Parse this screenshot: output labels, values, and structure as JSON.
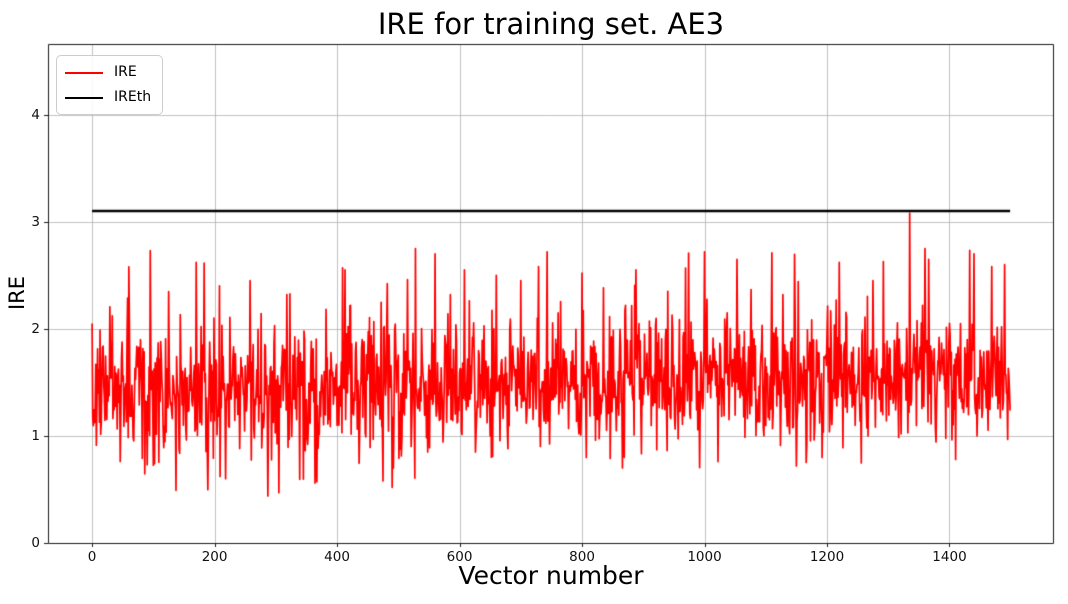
{
  "figure": {
    "background": "#ffffff",
    "text_color": "#000000"
  },
  "chart_data": {
    "type": "line",
    "title": "IRE for training set. AE3",
    "xlabel": "Vector number",
    "ylabel": "IRE",
    "xlim": [
      -72,
      1569
    ],
    "ylim": [
      0,
      4.66
    ],
    "x_ticks": [
      0,
      200,
      400,
      600,
      800,
      1000,
      1200,
      1400
    ],
    "y_ticks": [
      0,
      1,
      2,
      3,
      4
    ],
    "grid": true,
    "grid_color": "#b0b0b0",
    "spine_color": "#1a1a1a",
    "legend": {
      "position": "upper-left",
      "entries": [
        {
          "label": "IRE",
          "color": "#ff0000"
        },
        {
          "label": "IREth",
          "color": "#000000"
        }
      ]
    },
    "series": [
      {
        "name": "IRE",
        "kind": "noisy-line",
        "color": "#ff0000",
        "line_width": 1.7,
        "n_points": 1500,
        "x_start": 0,
        "x_step": 1,
        "seed": 1337,
        "mean_start": 1.42,
        "mean_end": 1.57,
        "std": 0.3,
        "min_start": 0.44,
        "min_end": 0.8,
        "max": 2.75,
        "spike_up_prob": 0.02,
        "dip_prob": 0.022,
        "fixed_points": [
          [
            0,
            2.05
          ],
          [
            60,
            2.58
          ],
          [
            95,
            2.73
          ],
          [
            170,
            2.62
          ],
          [
            218,
            0.6
          ],
          [
            258,
            2.45
          ],
          [
            287,
            0.44
          ],
          [
            305,
            0.47
          ],
          [
            318,
            2.32
          ],
          [
            364,
            0.56
          ],
          [
            413,
            2.55
          ],
          [
            475,
            0.58
          ],
          [
            490,
            0.52
          ],
          [
            528,
            2.75
          ],
          [
            560,
            2.7
          ],
          [
            608,
            2.55
          ],
          [
            660,
            2.5
          ],
          [
            700,
            2.45
          ],
          [
            743,
            2.72
          ],
          [
            800,
            2.52
          ],
          [
            846,
            0.79
          ],
          [
            888,
            2.55
          ],
          [
            940,
            2.35
          ],
          [
            1000,
            2.72
          ],
          [
            1053,
            2.65
          ],
          [
            1128,
            2.32
          ],
          [
            1150,
            0.72
          ],
          [
            1220,
            2.62
          ],
          [
            1275,
            2.45
          ],
          [
            1335,
            3.08
          ],
          [
            1360,
            2.75
          ],
          [
            1410,
            0.78
          ],
          [
            1440,
            2.7
          ],
          [
            1490,
            2.6
          ]
        ],
        "summary": "~1500 noisy reconstruction-error values, mostly 0.9-2.2, dips to ~0.45 before x=500, occasional spikes to ~2.75, single max spike ~3.08 at x~1335"
      },
      {
        "name": "IREth",
        "kind": "hline",
        "color": "#000000",
        "line_width": 2.6,
        "value": 3.1,
        "x_range": [
          0,
          1499
        ]
      }
    ]
  }
}
